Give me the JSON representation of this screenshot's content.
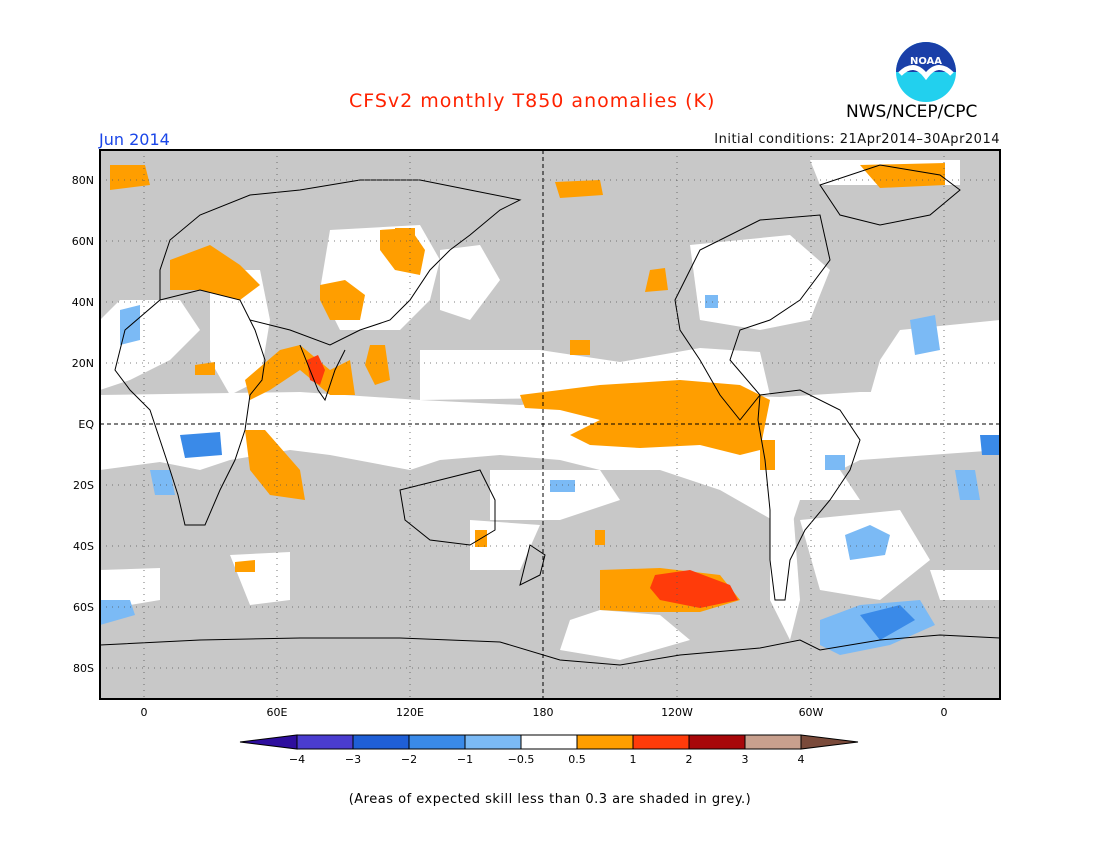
{
  "header": {
    "title": "CFSv2 monthly T850 anomalies (K)",
    "agency": "NWS/NCEP/CPC",
    "logo_text": "NOAA",
    "valid_month": "Jun 2014",
    "initial_conditions": "Initial conditions: 21Apr2014–30Apr2014"
  },
  "colors": {
    "title": "#ff2200",
    "month": "#1a46e8",
    "skill_grey": "#c8c8c8",
    "land_outline": "#000000"
  },
  "map": {
    "lat_labels": [
      "80N",
      "60N",
      "40N",
      "20N",
      "EQ",
      "20S",
      "40S",
      "60S",
      "80S"
    ],
    "lon_labels": [
      "0",
      "60E",
      "120E",
      "180",
      "120W",
      "60W",
      "0"
    ]
  },
  "legend": {
    "tick_labels": [
      "−4",
      "−3",
      "−2",
      "−1",
      "−0.5",
      "0.5",
      "1",
      "2",
      "3",
      "4"
    ],
    "colors": [
      "#2e0e9e",
      "#4a3ccf",
      "#1f5fd6",
      "#3a8ae8",
      "#7bbaf5",
      "#ffffff",
      "#ff9e00",
      "#ff3b0a",
      "#a8070a",
      "#c8a08e",
      "#7a4a3a"
    ]
  },
  "footer": {
    "note": "(Areas of expected skill less than 0.3 are shaded in grey.)"
  }
}
